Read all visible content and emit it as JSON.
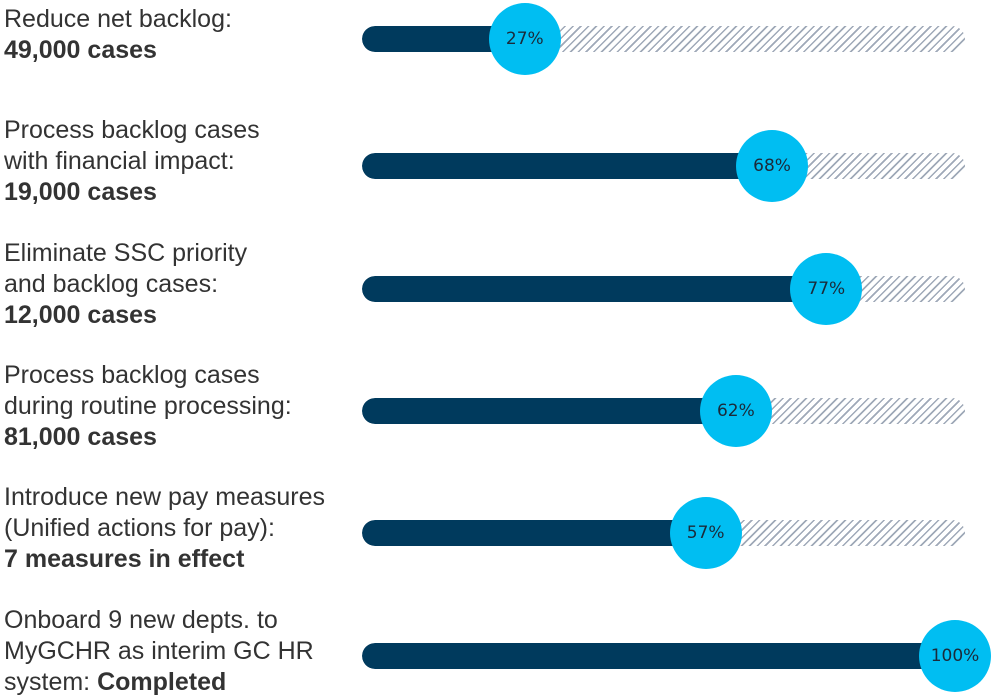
{
  "colors": {
    "fill": "#003a5d",
    "bubble": "#00bef2",
    "hatch": "#9fa9b8",
    "text": "#333333"
  },
  "chart_data": {
    "type": "bar",
    "orientation": "horizontal",
    "value_unit": "percent",
    "xlim": [
      0,
      100
    ],
    "items": [
      {
        "label_lines": [
          "Reduce net backlog:"
        ],
        "bold_prefix": "",
        "bold": "49,000 cases",
        "value": 27,
        "value_label": "27%"
      },
      {
        "label_lines": [
          "Process backlog cases",
          "with financial impact:"
        ],
        "bold_prefix": "",
        "bold": "19,000 cases",
        "value": 68,
        "value_label": "68%"
      },
      {
        "label_lines": [
          "Eliminate SSC priority",
          "and backlog cases:"
        ],
        "bold_prefix": "",
        "bold": "12,000 cases",
        "value": 77,
        "value_label": "77%"
      },
      {
        "label_lines": [
          "Process backlog cases",
          "during routine processing:"
        ],
        "bold_prefix": "",
        "bold": "81,000 cases",
        "value": 62,
        "value_label": "62%"
      },
      {
        "label_lines": [
          "Introduce new pay measures",
          "(Unified actions for pay):"
        ],
        "bold_prefix": "",
        "bold": "7 measures in effect",
        "value": 57,
        "value_label": "57%"
      },
      {
        "label_lines": [
          "Onboard 9 new depts. to",
          "MyGCHR as interim GC HR"
        ],
        "bold_prefix": "system: ",
        "bold": "Completed",
        "value": 100,
        "value_label": "100%"
      }
    ]
  }
}
